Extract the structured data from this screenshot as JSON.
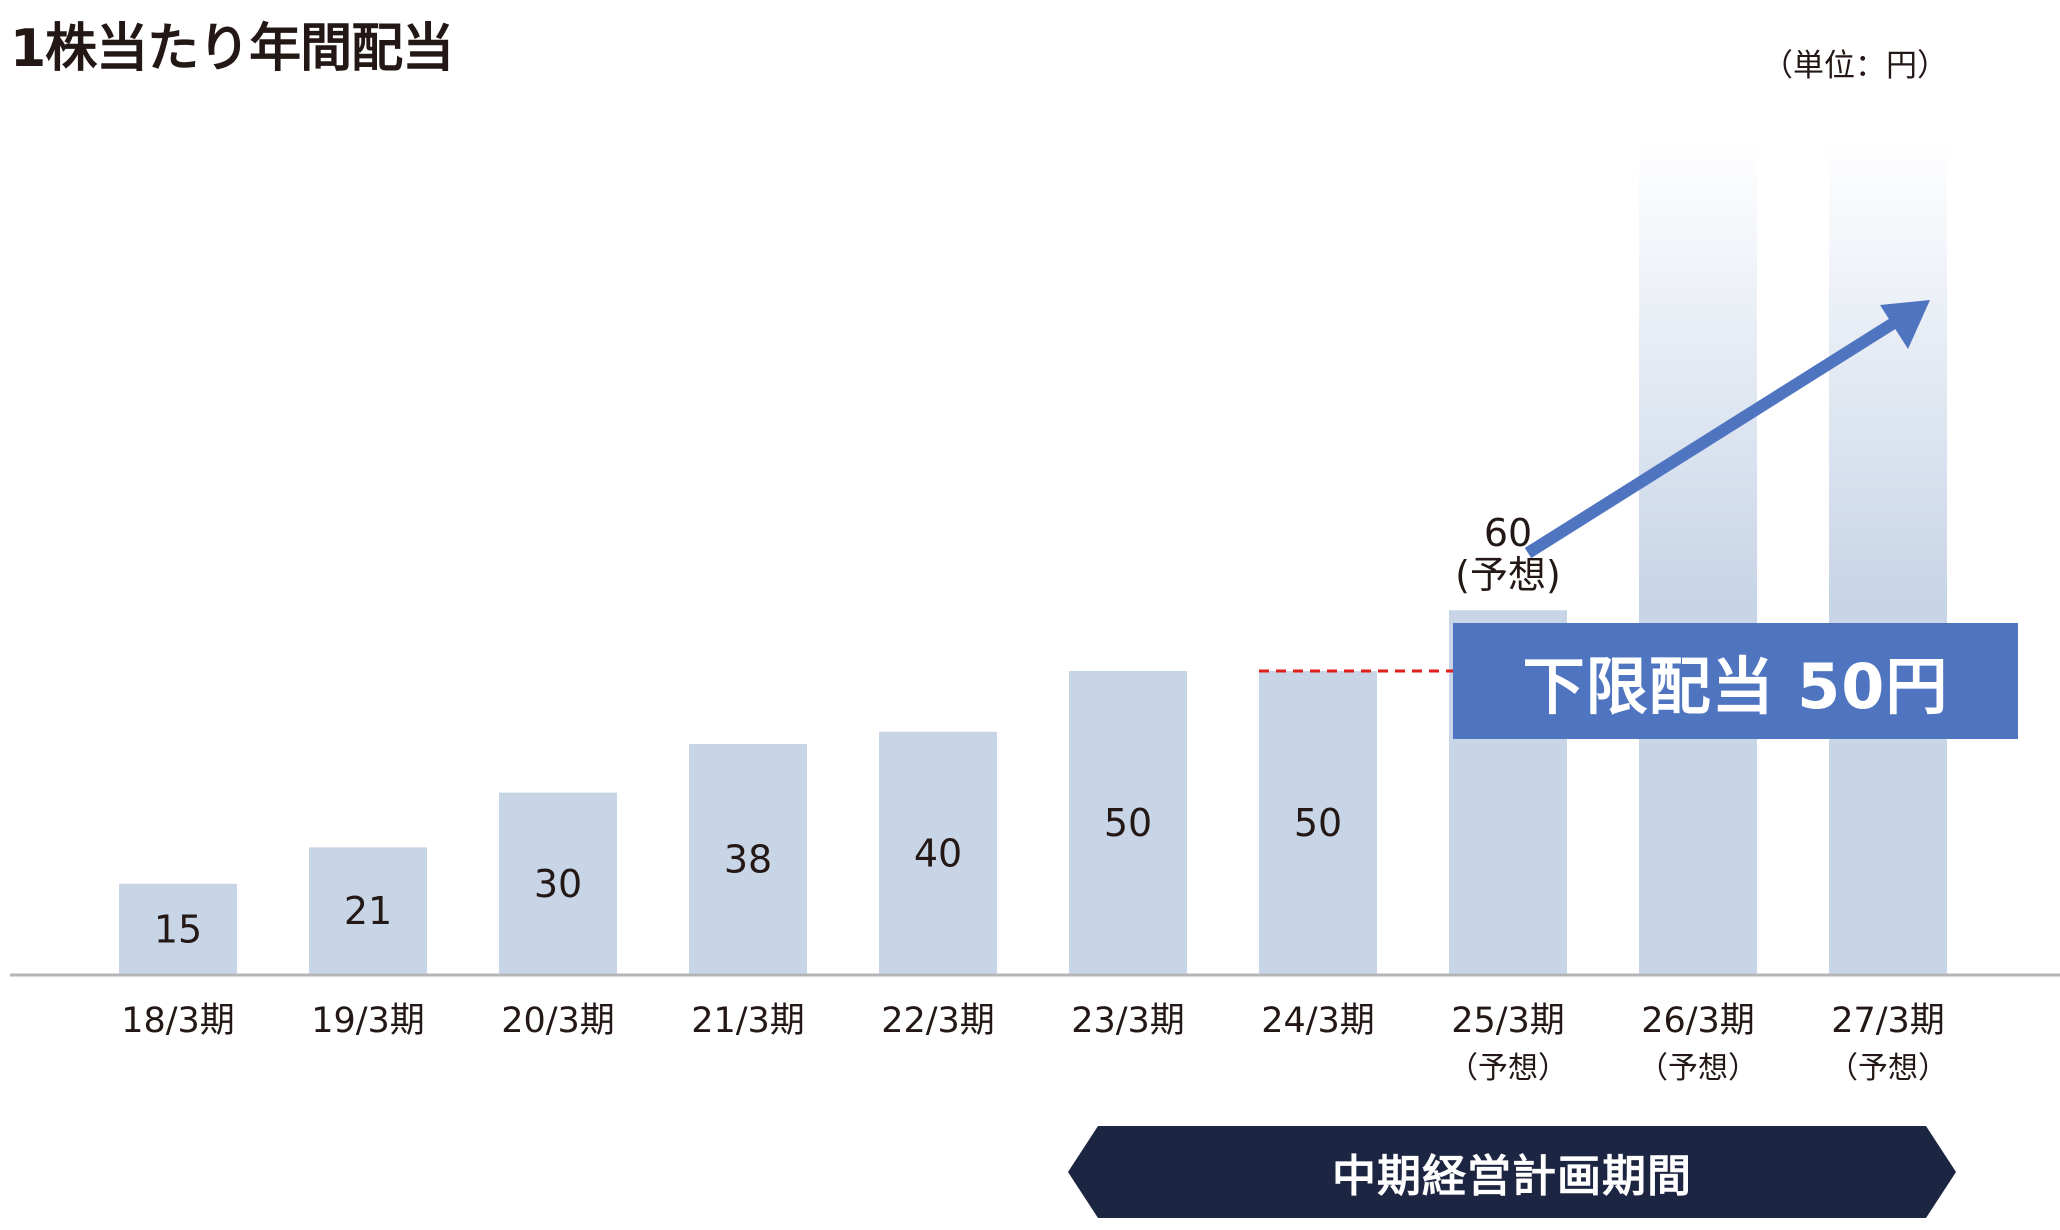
{
  "title": "1株当たり年間配当",
  "unit_label": "（単位：円）",
  "lower_dividend_label": "下限配当 50円",
  "plan_period_label": "中期経営計画期間",
  "colors": {
    "bar": "#c8d5e7",
    "accent_blue": "#4f74c0",
    "banner_navy": "#1c2541",
    "threshold_line": "#e0201c",
    "axis": "#b5b5b5"
  },
  "chart_data": {
    "type": "bar",
    "title": "1株当たり年間配当",
    "unit": "（単位：円）",
    "categories": [
      "18/3期",
      "19/3期",
      "20/3期",
      "21/3期",
      "22/3期",
      "23/3期",
      "24/3期",
      "25/3期",
      "26/3期",
      "27/3期"
    ],
    "category_notes": [
      "",
      "",
      "",
      "",
      "",
      "",
      "",
      "（予想）",
      "（予想）",
      "（予想）"
    ],
    "values": [
      15,
      21,
      30,
      38,
      40,
      50,
      50,
      60,
      null,
      null
    ],
    "value_labels": [
      "15",
      "21",
      "30",
      "38",
      "40",
      "50",
      "50",
      "60",
      "",
      ""
    ],
    "forecast_note": "(予想)",
    "lower_limit": 50,
    "ylim": [
      0,
      110
    ],
    "grid": false,
    "legend": "none"
  }
}
